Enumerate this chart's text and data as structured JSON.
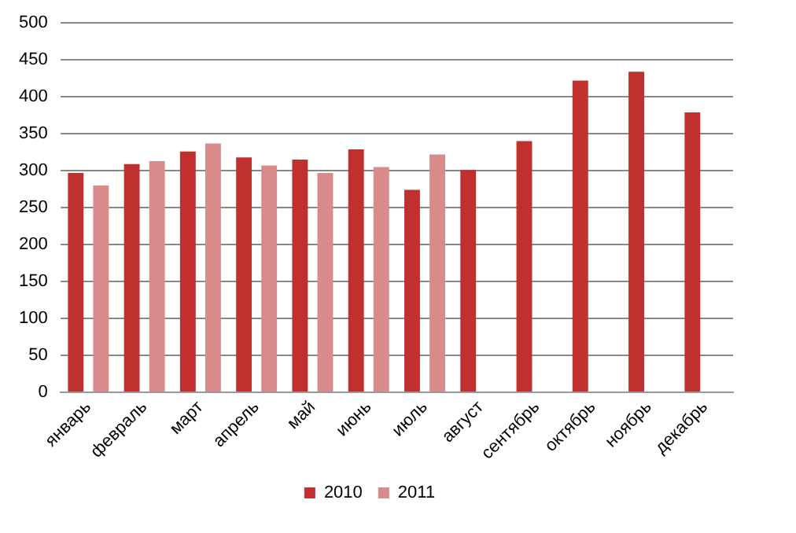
{
  "chart_data": {
    "type": "bar",
    "categories": [
      "январь",
      "февраль",
      "март",
      "апрель",
      "май",
      "июнь",
      "июль",
      "август",
      "сентябрь",
      "октябрь",
      "ноябрь",
      "декабрь"
    ],
    "series": [
      {
        "name": "2010",
        "color": "#c0302e",
        "values": [
          297,
          309,
          326,
          318,
          315,
          329,
          274,
          301,
          340,
          422,
          434,
          379
        ]
      },
      {
        "name": "2011",
        "color": "#d98a8a",
        "values": [
          280,
          313,
          337,
          307,
          297,
          305,
          322,
          null,
          null,
          null,
          null,
          null
        ]
      }
    ],
    "ylim": [
      0,
      500
    ],
    "yticks": [
      0,
      50,
      100,
      150,
      200,
      250,
      300,
      350,
      400,
      450,
      500
    ],
    "grid": "y",
    "legend": "bottom"
  }
}
